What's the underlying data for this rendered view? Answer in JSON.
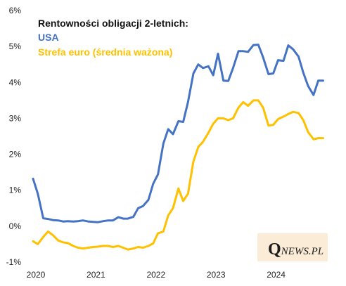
{
  "chart_data": {
    "type": "line",
    "title": "Rentowności obligacji  2-letnich:",
    "xlabel": "",
    "ylabel": "",
    "xlim": [
      2020,
      2025
    ],
    "ylim": [
      -1,
      6
    ],
    "x_ticks": [
      "2020",
      "2021",
      "2022",
      "2023",
      "2024"
    ],
    "y_ticks": [
      "-1%",
      "0%",
      "1%",
      "2%",
      "3%",
      "4%",
      "5%",
      "6%"
    ],
    "grid": false,
    "legend": "top-left",
    "series": [
      {
        "name": "USA",
        "color": "#4472c4",
        "x": [
          2020.0,
          2020.08,
          2020.17,
          2020.25,
          2020.33,
          2020.42,
          2020.5,
          2020.58,
          2020.67,
          2020.75,
          2020.83,
          2020.92,
          2021.0,
          2021.08,
          2021.17,
          2021.25,
          2021.33,
          2021.42,
          2021.5,
          2021.58,
          2021.67,
          2021.75,
          2021.83,
          2021.92,
          2022.0,
          2022.08,
          2022.17,
          2022.25,
          2022.33,
          2022.42,
          2022.5,
          2022.58,
          2022.67,
          2022.75,
          2022.83,
          2022.92,
          2023.0,
          2023.08,
          2023.17,
          2023.25,
          2023.33,
          2023.42,
          2023.5,
          2023.58,
          2023.67,
          2023.75,
          2023.83,
          2023.92,
          2024.0,
          2024.08,
          2024.17,
          2024.25,
          2024.33,
          2024.42,
          2024.5,
          2024.58,
          2024.67,
          2024.75,
          2024.83
        ],
        "values": [
          1.32,
          0.9,
          0.22,
          0.2,
          0.17,
          0.16,
          0.13,
          0.14,
          0.13,
          0.14,
          0.16,
          0.13,
          0.12,
          0.11,
          0.14,
          0.16,
          0.16,
          0.25,
          0.21,
          0.21,
          0.26,
          0.5,
          0.56,
          0.73,
          1.18,
          1.44,
          2.3,
          2.7,
          2.56,
          2.92,
          2.9,
          3.45,
          4.25,
          4.5,
          4.4,
          4.45,
          4.2,
          4.8,
          4.05,
          4.04,
          4.4,
          4.87,
          4.87,
          4.85,
          5.04,
          5.05,
          4.7,
          4.23,
          4.25,
          4.62,
          4.6,
          5.03,
          4.92,
          4.72,
          4.27,
          3.9,
          3.65,
          4.05,
          4.05
        ]
      },
      {
        "name": "Strefa euro (średnia ważona)",
        "color": "#ffc000",
        "x": [
          2020.0,
          2020.08,
          2020.17,
          2020.25,
          2020.33,
          2020.42,
          2020.5,
          2020.58,
          2020.67,
          2020.75,
          2020.83,
          2020.92,
          2021.0,
          2021.08,
          2021.17,
          2021.25,
          2021.33,
          2021.42,
          2021.5,
          2021.58,
          2021.67,
          2021.75,
          2021.83,
          2021.92,
          2022.0,
          2022.08,
          2022.17,
          2022.25,
          2022.33,
          2022.42,
          2022.5,
          2022.58,
          2022.67,
          2022.75,
          2022.83,
          2022.92,
          2023.0,
          2023.08,
          2023.17,
          2023.25,
          2023.33,
          2023.42,
          2023.5,
          2023.58,
          2023.67,
          2023.75,
          2023.83,
          2023.92,
          2024.0,
          2024.08,
          2024.17,
          2024.25,
          2024.33,
          2024.42,
          2024.5,
          2024.58,
          2024.67,
          2024.75,
          2024.83
        ],
        "values": [
          -0.42,
          -0.5,
          -0.3,
          -0.15,
          -0.25,
          -0.4,
          -0.45,
          -0.47,
          -0.55,
          -0.6,
          -0.62,
          -0.6,
          -0.58,
          -0.57,
          -0.55,
          -0.55,
          -0.58,
          -0.55,
          -0.6,
          -0.65,
          -0.62,
          -0.58,
          -0.6,
          -0.55,
          -0.48,
          -0.2,
          -0.15,
          0.3,
          0.5,
          1.05,
          0.7,
          0.9,
          1.8,
          2.2,
          2.35,
          2.6,
          2.85,
          3.0,
          3.0,
          2.95,
          3.0,
          3.3,
          3.45,
          3.35,
          3.5,
          3.5,
          3.3,
          2.8,
          2.82,
          2.98,
          3.05,
          3.12,
          3.18,
          3.15,
          2.95,
          2.62,
          2.42,
          2.45,
          2.45
        ]
      }
    ]
  },
  "watermark": {
    "initial": "Q",
    "rest": "NEWS.PL",
    "background": "#fbecd7"
  }
}
